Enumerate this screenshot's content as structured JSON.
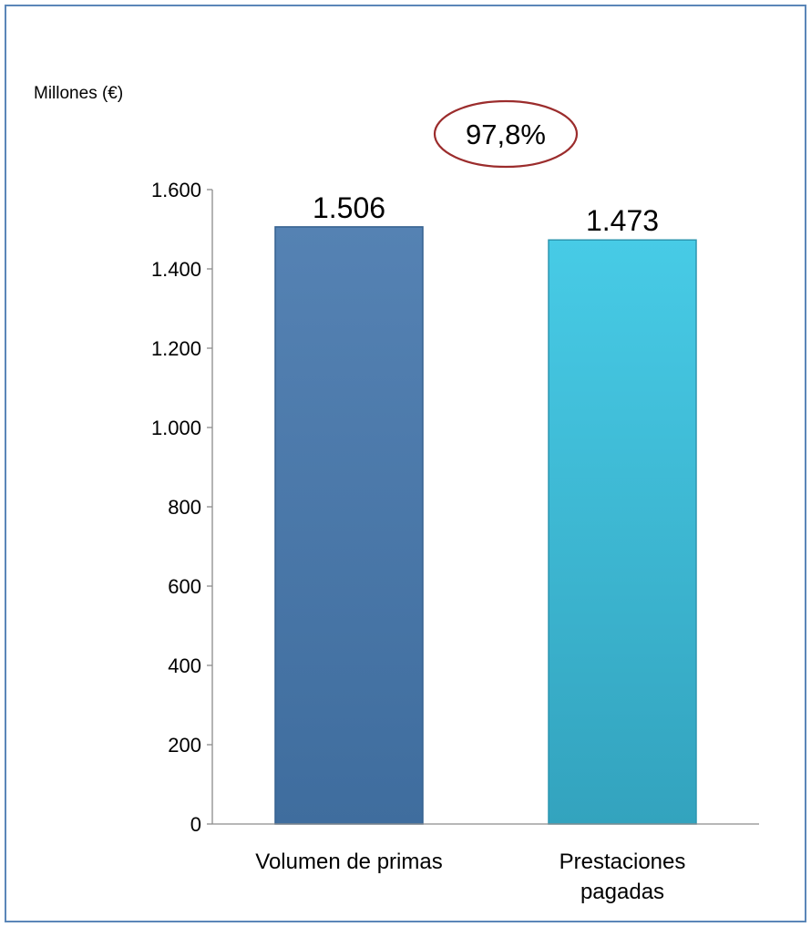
{
  "colors": {
    "frame": "#5b86b8",
    "ratio_outline": "#9b2c2c",
    "axis": "#8c8c8c"
  },
  "chart_data": {
    "type": "bar",
    "unit_label": "Millones (€)",
    "categories": [
      {
        "lines": [
          "Volumen de primas"
        ]
      },
      {
        "lines": [
          "Prestaciones",
          "pagadas"
        ]
      }
    ],
    "values": [
      1506,
      1473
    ],
    "value_labels": [
      "1.506",
      "1.473"
    ],
    "bar_colors": [
      {
        "top": "#5582b3",
        "bottom": "#3f6d9e",
        "edge": "#35608f"
      },
      {
        "top": "#47cbe6",
        "bottom": "#33a3be",
        "edge": "#2d96b0"
      }
    ],
    "ylim": [
      0,
      1600
    ],
    "yticks": [
      0,
      200,
      400,
      600,
      800,
      1000,
      1200,
      1400,
      1600
    ],
    "ytick_labels": [
      "0",
      "200",
      "400",
      "600",
      "800",
      "1.000",
      "1.200",
      "1.400",
      "1.600"
    ],
    "annotation": "97,8%",
    "grid": false,
    "legend": "none"
  }
}
